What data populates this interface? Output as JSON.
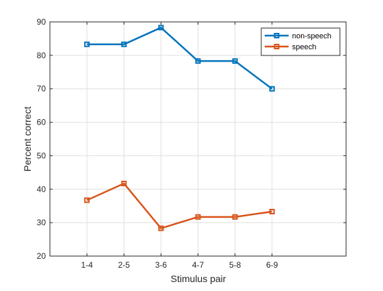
{
  "chart_data": {
    "type": "line",
    "title": "",
    "xlabel": "Stimulus pair",
    "ylabel": "Percent correct",
    "categories": [
      "1-4",
      "2-5",
      "3-6",
      "4-7",
      "5-8",
      "6-9"
    ],
    "xlim_categories": 8,
    "ylim": [
      20,
      90
    ],
    "yticks": [
      20,
      30,
      40,
      50,
      60,
      70,
      80,
      90
    ],
    "grid": true,
    "legend_position": "top-right",
    "series": [
      {
        "name": "non-speech",
        "color": "#0072BD",
        "marker": "square",
        "values": [
          83.3,
          83.3,
          88.3,
          78.3,
          78.3,
          70.0
        ]
      },
      {
        "name": "speech",
        "color": "#D95319",
        "marker": "square",
        "values": [
          36.7,
          41.7,
          28.3,
          31.7,
          31.7,
          33.3
        ]
      }
    ]
  }
}
